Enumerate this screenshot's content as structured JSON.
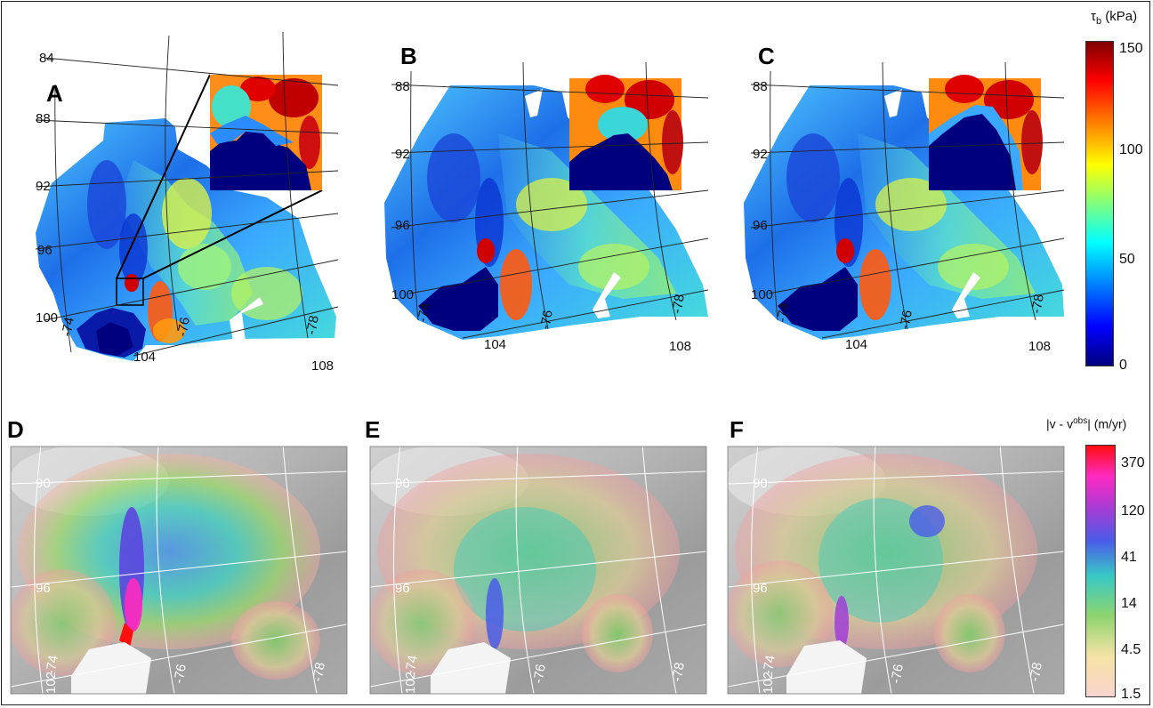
{
  "panels_top": [
    {
      "label": "A"
    },
    {
      "label": "B"
    },
    {
      "label": "C"
    }
  ],
  "panels_bottom": [
    {
      "label": "D"
    },
    {
      "label": "E"
    },
    {
      "label": "F"
    }
  ],
  "top_grid": {
    "lat_labels": [
      "84",
      "88",
      "92",
      "96",
      "100",
      "104",
      "108"
    ],
    "lon_labels": [
      "-74",
      "-76",
      "-78"
    ]
  },
  "bottom_grid": {
    "lat_labels": [
      "90",
      "96",
      "102"
    ],
    "lon_labels": [
      "-74",
      "-76",
      "-78"
    ]
  },
  "colorbar_tau": {
    "title_sym": "τ",
    "title_sub": "b",
    "title_unit": " (kPa)",
    "ticks": [
      "150",
      "100",
      "50",
      "0"
    ]
  },
  "colorbar_vel": {
    "title_pre": "|v - v",
    "title_sup": "obs",
    "title_post": "| (m/yr)",
    "ticks": [
      "370",
      "120",
      "41",
      "14",
      "4.5",
      "1.5"
    ]
  },
  "colors": {
    "jet": [
      "#00007f",
      "#0000ff",
      "#007fff",
      "#00ffff",
      "#7fff7f",
      "#ffff00",
      "#ff7f00",
      "#ff0000",
      "#7f0000"
    ],
    "vel": [
      "#f9d4cf",
      "#f5e3a4",
      "#8fd46f",
      "#38c9c4",
      "#4a5ce8",
      "#a03ed6",
      "#ff29c0",
      "#ff0d0d"
    ]
  }
}
